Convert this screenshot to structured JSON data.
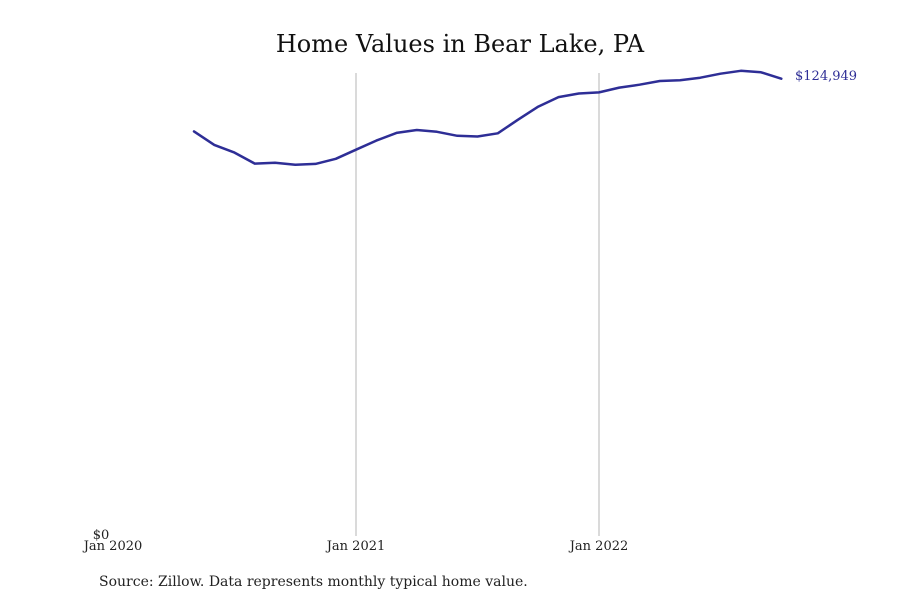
{
  "chart_data": {
    "type": "line",
    "title": "Home Values in Bear Lake, PA",
    "source": "Source: Zillow. Data represents monthly typical home value.",
    "xlabel": "",
    "ylabel": "",
    "x_tick_labels": [
      "Jan 2020",
      "Jan 2021",
      "Jan 2022"
    ],
    "y_tick_labels": [
      "$0"
    ],
    "xlim": [
      "2020-01",
      "2022-12"
    ],
    "ylim": [
      0,
      126500
    ],
    "grid": "vertical lines at Jan 2021 and Jan 2022",
    "line_color": "#2e2e96",
    "end_label": "$124,949",
    "series": [
      {
        "x": [
          "2020-05",
          "2020-06",
          "2020-07",
          "2020-08",
          "2020-09",
          "2020-10",
          "2020-11",
          "2020-12",
          "2021-01",
          "2021-02",
          "2021-03",
          "2021-04",
          "2021-05",
          "2021-06",
          "2021-07",
          "2021-08",
          "2021-09",
          "2021-10",
          "2021-11",
          "2021-12",
          "2022-01",
          "2022-02",
          "2022-03",
          "2022-04",
          "2022-05",
          "2022-06",
          "2022-07",
          "2022-08",
          "2022-09",
          "2022-10"
        ],
        "values": [
          110500,
          106800,
          104700,
          101700,
          101900,
          101400,
          101600,
          103000,
          105500,
          108000,
          110100,
          110900,
          110400,
          109300,
          109100,
          110000,
          113700,
          117300,
          119900,
          120900,
          121200,
          122500,
          123300,
          124300,
          124500,
          125200,
          126300,
          127100,
          126700,
          124949
        ]
      }
    ]
  }
}
